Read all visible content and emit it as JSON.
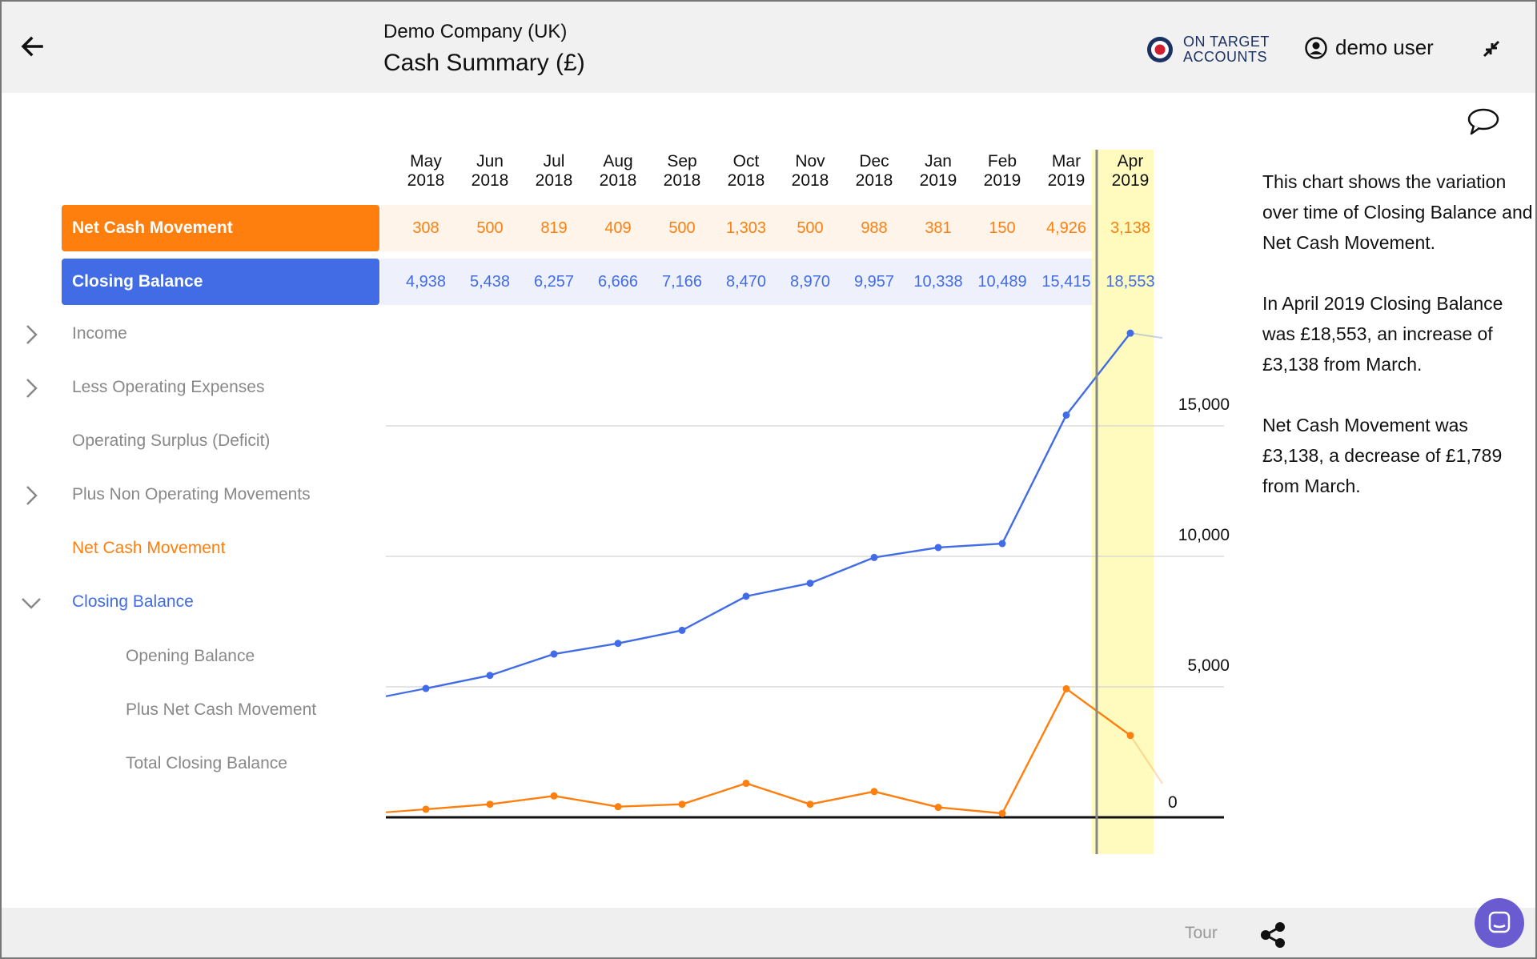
{
  "header": {
    "company": "Demo Company (UK)",
    "title": "Cash Summary (£)",
    "brand_line1": "ON TARGET",
    "brand_line2": "ACCOUNTS",
    "user_name": "demo user"
  },
  "rows": {
    "net_cash_pill": "Net Cash Movement",
    "closing_balance_pill": "Closing Balance",
    "income": "Income",
    "less_operating_expenses": "Less Operating Expenses",
    "operating_surplus": "Operating Surplus (Deficit)",
    "plus_non_operating": "Plus Non Operating Movements",
    "net_cash_movement": "Net Cash Movement",
    "closing_balance": "Closing Balance",
    "opening_balance": "Opening Balance",
    "plus_net_cash_movement": "Plus Net Cash Movement",
    "total_closing_balance": "Total Closing Balance"
  },
  "description": {
    "p1": "This chart shows the variation over time of Closing Balance and Net Cash Movement.",
    "p2": "In April 2019 Closing Balance was £18,553, an increase of £3,138 from March.",
    "p3": "Net Cash Movement was £3,138, a decrease of £1,789 from March."
  },
  "footer": {
    "tour_label": "Tour"
  },
  "colors": {
    "net_cash": "#ff7f0e",
    "closing_balance": "#416ce6",
    "highlight": "#fffbbf"
  },
  "icons": {
    "back": "arrow-left-icon",
    "brand": "roundel-logo-icon",
    "user": "user-circle-icon",
    "shrink": "minimize-icon",
    "comment": "speech-bubble-icon",
    "share": "share-icon",
    "chat": "chat-icon",
    "chevron_right": "chevron-right-icon",
    "chevron_down": "chevron-down-icon"
  },
  "chart_data": {
    "type": "line",
    "categories": [
      "May 2018",
      "Jun 2018",
      "Jul 2018",
      "Aug 2018",
      "Sep 2018",
      "Oct 2018",
      "Nov 2018",
      "Dec 2018",
      "Jan 2019",
      "Feb 2019",
      "Mar 2019",
      "Apr 2019"
    ],
    "month_labels": [
      [
        "May",
        "2018"
      ],
      [
        "Jun",
        "2018"
      ],
      [
        "Jul",
        "2018"
      ],
      [
        "Aug",
        "2018"
      ],
      [
        "Sep",
        "2018"
      ],
      [
        "Oct",
        "2018"
      ],
      [
        "Nov",
        "2018"
      ],
      [
        "Dec",
        "2018"
      ],
      [
        "Jan",
        "2019"
      ],
      [
        "Feb",
        "2019"
      ],
      [
        "Mar",
        "2019"
      ],
      [
        "Apr",
        "2019"
      ]
    ],
    "series": [
      {
        "name": "Net Cash Movement",
        "values": [
          308,
          500,
          819,
          409,
          500,
          1303,
          500,
          988,
          381,
          150,
          4926,
          3138
        ],
        "labels": [
          "308",
          "500",
          "819",
          "409",
          "500",
          "1,303",
          "500",
          "988",
          "381",
          "150",
          "4,926",
          "3,138"
        ]
      },
      {
        "name": "Closing Balance",
        "values": [
          4938,
          5438,
          6257,
          6666,
          7166,
          8470,
          8970,
          9957,
          10338,
          10489,
          15415,
          18553
        ],
        "labels": [
          "4,938",
          "5,438",
          "6,257",
          "6,666",
          "7,166",
          "8,470",
          "8,970",
          "9,957",
          "10,338",
          "10,489",
          "15,415",
          "18,553"
        ]
      }
    ],
    "highlighted_category": "Apr 2019",
    "yticks": [
      0,
      5000,
      10000,
      15000
    ],
    "ytick_labels": [
      "0",
      "5,000",
      "10,000",
      "15,000"
    ],
    "ylim": [
      0,
      18553
    ],
    "grid": true
  }
}
